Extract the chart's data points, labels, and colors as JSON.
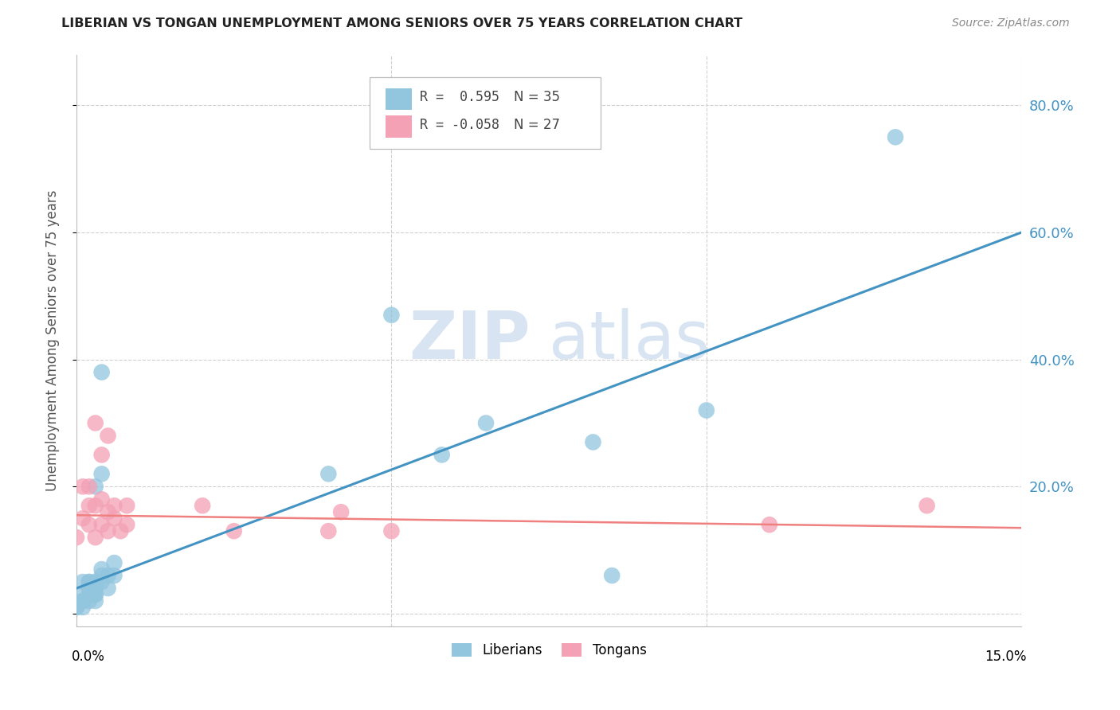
{
  "title": "LIBERIAN VS TONGAN UNEMPLOYMENT AMONG SENIORS OVER 75 YEARS CORRELATION CHART",
  "source": "Source: ZipAtlas.com",
  "ylabel": "Unemployment Among Seniors over 75 years",
  "legend_liberian_r": "R =  0.595",
  "legend_liberian_n": "N = 35",
  "legend_tongan_r": "R = -0.058",
  "legend_tongan_n": "N = 27",
  "liberian_color": "#92c5de",
  "tongan_color": "#f4a0b5",
  "liberian_line_color": "#4393c3",
  "tongan_line_color": "#f08080",
  "watermark_zip": "ZIP",
  "watermark_atlas": "atlas",
  "liberian_x": [
    0.0,
    0.0,
    0.001,
    0.001,
    0.001,
    0.001,
    0.001,
    0.002,
    0.002,
    0.002,
    0.002,
    0.002,
    0.003,
    0.003,
    0.003,
    0.003,
    0.003,
    0.003,
    0.004,
    0.004,
    0.004,
    0.004,
    0.004,
    0.005,
    0.005,
    0.006,
    0.006,
    0.04,
    0.05,
    0.058,
    0.065,
    0.082,
    0.085,
    0.1,
    0.13
  ],
  "liberian_y": [
    0.01,
    0.01,
    0.01,
    0.02,
    0.02,
    0.03,
    0.05,
    0.02,
    0.03,
    0.04,
    0.05,
    0.05,
    0.02,
    0.03,
    0.03,
    0.04,
    0.05,
    0.2,
    0.05,
    0.06,
    0.07,
    0.22,
    0.38,
    0.04,
    0.06,
    0.06,
    0.08,
    0.22,
    0.47,
    0.25,
    0.3,
    0.27,
    0.06,
    0.32,
    0.75
  ],
  "tongan_x": [
    0.0,
    0.001,
    0.001,
    0.002,
    0.002,
    0.002,
    0.003,
    0.003,
    0.003,
    0.004,
    0.004,
    0.004,
    0.005,
    0.005,
    0.005,
    0.006,
    0.006,
    0.007,
    0.008,
    0.008,
    0.02,
    0.025,
    0.04,
    0.042,
    0.05,
    0.11,
    0.135
  ],
  "tongan_y": [
    0.12,
    0.15,
    0.2,
    0.14,
    0.17,
    0.2,
    0.12,
    0.17,
    0.3,
    0.14,
    0.18,
    0.25,
    0.13,
    0.16,
    0.28,
    0.15,
    0.17,
    0.13,
    0.14,
    0.17,
    0.17,
    0.13,
    0.13,
    0.16,
    0.13,
    0.14,
    0.17
  ],
  "xlim": [
    0.0,
    0.15
  ],
  "ylim": [
    -0.02,
    0.88
  ],
  "yticks": [
    0.0,
    0.2,
    0.4,
    0.6,
    0.8
  ],
  "ytick_labels": [
    "",
    "20.0%",
    "40.0%",
    "60.0%",
    "80.0%"
  ],
  "xtick_positions": [
    0.0,
    0.05,
    0.1,
    0.15
  ],
  "lib_line_x0": 0.0,
  "lib_line_x1": 0.15,
  "lib_line_y0": 0.04,
  "lib_line_y1": 0.6,
  "ton_line_x0": 0.0,
  "ton_line_x1": 0.15,
  "ton_line_y0": 0.155,
  "ton_line_y1": 0.135
}
